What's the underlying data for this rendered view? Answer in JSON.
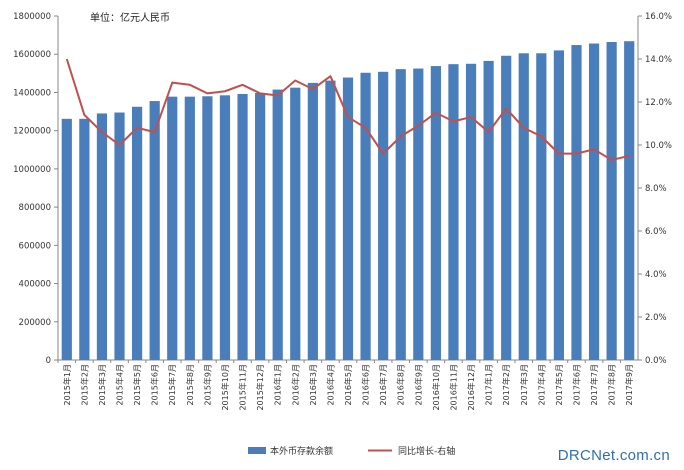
{
  "unit_note": "单位：亿元人民币",
  "watermark": "DRCNet.com.cn",
  "chart_data": {
    "type": "bar",
    "categories": [
      "2015年1月",
      "2015年2月",
      "2015年3月",
      "2015年4月",
      "2015年5月",
      "2015年6月",
      "2015年7月",
      "2015年8月",
      "2015年9月",
      "2015年10月",
      "2015年11月",
      "2015年12月",
      "2016年1月",
      "2016年2月",
      "2016年3月",
      "2016年4月",
      "2016年5月",
      "2016年6月",
      "2016年7月",
      "2016年8月",
      "2016年9月",
      "2016年10月",
      "2016年11月",
      "2016年12月",
      "2017年1月",
      "2017年2月",
      "2017年3月",
      "2017年4月",
      "2017年5月",
      "2017年6月",
      "2017年7月",
      "2017年8月",
      "2017年9月"
    ],
    "series": [
      {
        "name": "本外币存款余额",
        "type": "bar",
        "axis": "left",
        "color": "#4a7ebb",
        "values": [
          1262000,
          1262000,
          1290000,
          1295000,
          1325000,
          1355000,
          1378000,
          1378000,
          1380000,
          1385000,
          1392000,
          1397000,
          1415000,
          1425000,
          1450000,
          1462000,
          1478000,
          1503000,
          1508000,
          1522000,
          1525000,
          1538000,
          1548000,
          1550000,
          1565000,
          1592000,
          1605000,
          1605000,
          1620000,
          1648000,
          1656000,
          1664000,
          1668000
        ]
      },
      {
        "name": "同比增长-右轴",
        "type": "line",
        "axis": "right",
        "color": "#c0504d",
        "values": [
          14.0,
          11.4,
          10.6,
          10.0,
          10.8,
          10.6,
          12.9,
          12.8,
          12.4,
          12.5,
          12.8,
          12.4,
          12.3,
          13.0,
          12.6,
          13.2,
          11.3,
          10.8,
          9.6,
          10.4,
          10.9,
          11.5,
          11.1,
          11.3,
          10.6,
          11.7,
          10.8,
          10.4,
          9.6,
          9.6,
          9.8,
          9.3,
          9.5
        ]
      }
    ],
    "y_left": {
      "min": 0,
      "max": 1800000,
      "ticks": [
        "0",
        "200000",
        "400000",
        "600000",
        "800000",
        "1000000",
        "1200000",
        "1400000",
        "1600000",
        "1800000"
      ]
    },
    "y_right": {
      "min": 0,
      "max": 16,
      "ticks": [
        "0.0%",
        "2.0%",
        "4.0%",
        "6.0%",
        "8.0%",
        "10.0%",
        "12.0%",
        "14.0%",
        "16.0%"
      ]
    },
    "grid": false,
    "legend_position": "bottom-center"
  }
}
